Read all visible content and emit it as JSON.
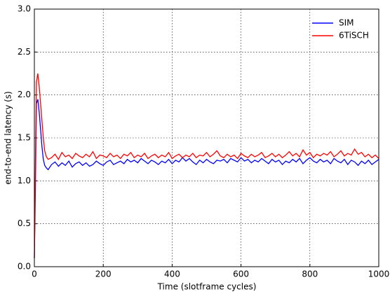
{
  "chart_data": {
    "type": "line",
    "xlabel": "Time (slotframe cycles)",
    "ylabel": "end-to-end latency (s)",
    "x": [
      0,
      3,
      6,
      10,
      14,
      18,
      22,
      26,
      30,
      35,
      40,
      50,
      60,
      70,
      80,
      90,
      100,
      110,
      120,
      130,
      140,
      150,
      160,
      170,
      180,
      190,
      200,
      210,
      220,
      230,
      240,
      250,
      260,
      270,
      280,
      290,
      300,
      310,
      320,
      330,
      340,
      350,
      360,
      370,
      380,
      390,
      400,
      410,
      420,
      430,
      440,
      450,
      460,
      470,
      480,
      490,
      500,
      510,
      520,
      530,
      540,
      550,
      560,
      570,
      580,
      590,
      600,
      610,
      620,
      630,
      640,
      650,
      660,
      670,
      680,
      690,
      700,
      710,
      720,
      730,
      740,
      750,
      760,
      770,
      780,
      790,
      800,
      810,
      820,
      830,
      840,
      850,
      860,
      870,
      880,
      890,
      900,
      910,
      920,
      930,
      940,
      950,
      960,
      970,
      980,
      990,
      1000
    ],
    "series": [
      {
        "name": "SIM",
        "color": "#0000ff",
        "values": [
          0.1,
          0.9,
          1.9,
          1.95,
          1.8,
          1.6,
          1.4,
          1.25,
          1.18,
          1.15,
          1.13,
          1.19,
          1.22,
          1.17,
          1.21,
          1.18,
          1.23,
          1.16,
          1.2,
          1.22,
          1.18,
          1.21,
          1.17,
          1.19,
          1.23,
          1.2,
          1.18,
          1.22,
          1.24,
          1.19,
          1.21,
          1.23,
          1.2,
          1.25,
          1.22,
          1.24,
          1.21,
          1.26,
          1.23,
          1.2,
          1.24,
          1.22,
          1.19,
          1.23,
          1.21,
          1.25,
          1.2,
          1.24,
          1.22,
          1.27,
          1.23,
          1.26,
          1.22,
          1.19,
          1.24,
          1.21,
          1.25,
          1.22,
          1.2,
          1.24,
          1.23,
          1.25,
          1.21,
          1.26,
          1.24,
          1.22,
          1.27,
          1.23,
          1.25,
          1.21,
          1.24,
          1.22,
          1.26,
          1.23,
          1.2,
          1.25,
          1.22,
          1.24,
          1.19,
          1.23,
          1.21,
          1.25,
          1.22,
          1.26,
          1.2,
          1.24,
          1.27,
          1.23,
          1.21,
          1.25,
          1.22,
          1.24,
          1.2,
          1.26,
          1.23,
          1.21,
          1.25,
          1.19,
          1.24,
          1.22,
          1.18,
          1.23,
          1.2,
          1.24,
          1.19,
          1.22,
          1.25
        ]
      },
      {
        "name": "6TiSCH",
        "color": "#ff0000",
        "values": [
          0.1,
          1.2,
          2.15,
          2.25,
          2.1,
          1.9,
          1.7,
          1.5,
          1.35,
          1.28,
          1.25,
          1.27,
          1.31,
          1.25,
          1.33,
          1.28,
          1.3,
          1.26,
          1.32,
          1.29,
          1.27,
          1.31,
          1.28,
          1.34,
          1.26,
          1.3,
          1.29,
          1.27,
          1.32,
          1.28,
          1.3,
          1.26,
          1.31,
          1.29,
          1.33,
          1.27,
          1.3,
          1.28,
          1.32,
          1.26,
          1.29,
          1.31,
          1.27,
          1.3,
          1.28,
          1.33,
          1.26,
          1.29,
          1.31,
          1.27,
          1.3,
          1.28,
          1.32,
          1.27,
          1.3,
          1.29,
          1.33,
          1.28,
          1.31,
          1.35,
          1.29,
          1.27,
          1.31,
          1.28,
          1.3,
          1.26,
          1.32,
          1.29,
          1.27,
          1.31,
          1.28,
          1.3,
          1.33,
          1.27,
          1.29,
          1.32,
          1.28,
          1.31,
          1.27,
          1.3,
          1.34,
          1.29,
          1.32,
          1.28,
          1.36,
          1.3,
          1.33,
          1.27,
          1.31,
          1.29,
          1.32,
          1.3,
          1.34,
          1.28,
          1.31,
          1.35,
          1.29,
          1.32,
          1.3,
          1.37,
          1.31,
          1.33,
          1.28,
          1.31,
          1.27,
          1.3,
          1.26
        ]
      }
    ],
    "xlim": [
      0,
      1000
    ],
    "xticks": [
      0,
      200,
      400,
      600,
      800,
      1000
    ],
    "ylim": [
      0,
      3
    ],
    "yticks": [
      {
        "value": 0,
        "label": "0.0"
      },
      {
        "value": 0.5,
        "label": "0.5"
      },
      {
        "value": 1,
        "label": "1.0"
      },
      {
        "value": 1.5,
        "label": "1.5"
      },
      {
        "value": 2,
        "label": "2.0"
      },
      {
        "value": 2.5,
        "label": "2.5"
      },
      {
        "value": 3,
        "label": "3.0"
      }
    ],
    "grid": true,
    "legend": "upper right"
  }
}
